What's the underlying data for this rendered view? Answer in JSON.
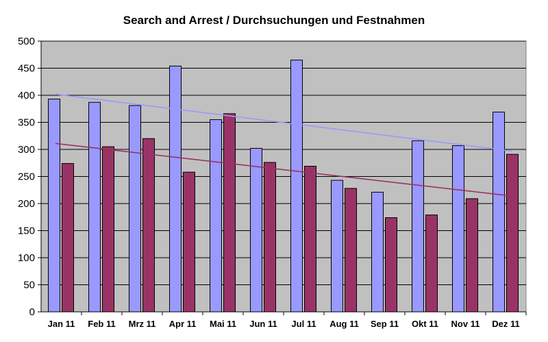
{
  "chart_data": {
    "type": "bar",
    "title": "Search and Arrest / Durchsuchungen und Festnahmen",
    "xlabel": "",
    "ylabel": "",
    "ylim": [
      0,
      500
    ],
    "yticks": [
      0,
      50,
      100,
      150,
      200,
      250,
      300,
      350,
      400,
      450,
      500
    ],
    "grid": true,
    "legend": "none",
    "categories": [
      "Jan 11",
      "Feb 11",
      "Mrz 11",
      "Apr 11",
      "Mai 11",
      "Jun 11",
      "Jul 11",
      "Aug 11",
      "Sep 11",
      "Okt 11",
      "Nov 11",
      "Dez 11"
    ],
    "series": [
      {
        "color": "#9999ff",
        "values": [
          393,
          387,
          381,
          454,
          355,
          302,
          465,
          243,
          221,
          316,
          307,
          369
        ]
      },
      {
        "color": "#993366",
        "values": [
          274,
          305,
          320,
          258,
          366,
          276,
          269,
          228,
          174,
          179,
          209,
          291
        ]
      }
    ],
    "trendlines": [
      {
        "color": "#9999ff",
        "start": 402,
        "end": 297
      },
      {
        "color": "#993366",
        "start": 311,
        "end": 214
      }
    ],
    "plot_background": "#c0c0c0"
  }
}
